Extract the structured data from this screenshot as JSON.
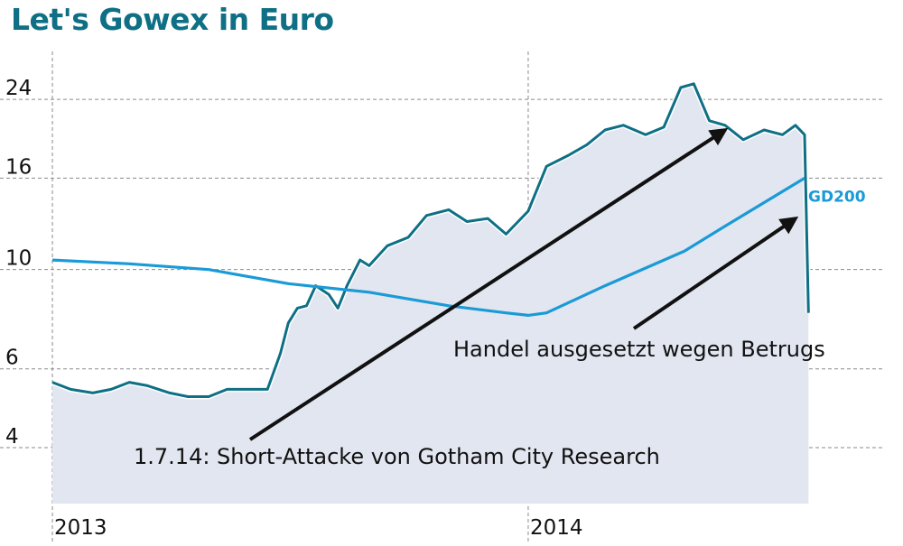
{
  "title": "Let's Gowex in Euro",
  "chart_data": {
    "type": "line",
    "title": "Let's Gowex in Euro",
    "scale": "log",
    "ylim": [
      3,
      30
    ],
    "yticks": [
      4,
      6,
      10,
      16,
      24
    ],
    "xlim": [
      "2013-01-01",
      "2014-08-01"
    ],
    "xticks": [
      {
        "date": "2013-01-01",
        "label": "2013"
      },
      {
        "date": "2014-01-01",
        "label": "2014"
      }
    ],
    "grid": true,
    "series": [
      {
        "name": "",
        "color": "#0e6f85",
        "fill": "#e2e6f0",
        "points": [
          [
            "2013-01-01",
            5.6
          ],
          [
            "2013-01-15",
            5.4
          ],
          [
            "2013-02-01",
            5.3
          ],
          [
            "2013-02-15",
            5.4
          ],
          [
            "2013-03-01",
            5.6
          ],
          [
            "2013-03-15",
            5.5
          ],
          [
            "2013-04-01",
            5.3
          ],
          [
            "2013-04-15",
            5.2
          ],
          [
            "2013-05-01",
            5.2
          ],
          [
            "2013-05-15",
            5.4
          ],
          [
            "2013-06-01",
            5.4
          ],
          [
            "2013-06-15",
            5.4
          ],
          [
            "2013-06-25",
            6.5
          ],
          [
            "2013-07-01",
            7.6
          ],
          [
            "2013-07-08",
            8.2
          ],
          [
            "2013-07-15",
            8.3
          ],
          [
            "2013-07-22",
            9.2
          ],
          [
            "2013-08-01",
            8.8
          ],
          [
            "2013-08-08",
            8.2
          ],
          [
            "2013-08-15",
            9.2
          ],
          [
            "2013-08-25",
            10.5
          ],
          [
            "2013-09-01",
            10.2
          ],
          [
            "2013-09-15",
            11.3
          ],
          [
            "2013-10-01",
            11.8
          ],
          [
            "2013-10-15",
            13.2
          ],
          [
            "2013-11-01",
            13.6
          ],
          [
            "2013-11-15",
            12.8
          ],
          [
            "2013-12-01",
            13.0
          ],
          [
            "2013-12-15",
            12.0
          ],
          [
            "2014-01-01",
            13.5
          ],
          [
            "2014-01-15",
            17.0
          ],
          [
            "2014-02-01",
            18.0
          ],
          [
            "2014-02-15",
            19.0
          ],
          [
            "2014-03-01",
            20.5
          ],
          [
            "2014-03-15",
            21.0
          ],
          [
            "2014-04-01",
            20.0
          ],
          [
            "2014-04-15",
            20.8
          ],
          [
            "2014-04-28",
            25.5
          ],
          [
            "2014-05-08",
            26.0
          ],
          [
            "2014-05-20",
            21.5
          ],
          [
            "2014-06-01",
            21.0
          ],
          [
            "2014-06-15",
            19.5
          ],
          [
            "2014-07-01",
            20.5
          ],
          [
            "2014-07-15",
            20.0
          ],
          [
            "2014-07-25",
            21.0
          ],
          [
            "2014-08-01",
            20.0
          ],
          [
            "2014-08-04",
            8.0
          ]
        ]
      },
      {
        "name": "GD200",
        "color": "#1a9ad6",
        "points": [
          [
            "2013-01-01",
            10.5
          ],
          [
            "2013-03-01",
            10.3
          ],
          [
            "2013-05-01",
            10.0
          ],
          [
            "2013-07-01",
            9.3
          ],
          [
            "2013-09-01",
            8.9
          ],
          [
            "2013-11-01",
            8.3
          ],
          [
            "2013-12-15",
            8.0
          ],
          [
            "2014-01-01",
            7.9
          ],
          [
            "2014-01-15",
            8.0
          ],
          [
            "2014-03-01",
            9.2
          ],
          [
            "2014-05-01",
            11.0
          ],
          [
            "2014-06-01",
            12.5
          ],
          [
            "2014-08-01",
            16.0
          ]
        ]
      }
    ],
    "annotations": [
      {
        "text": "1.7.14: Short-Attacke von Gotham City Research",
        "arrow_to": [
          "2014-06-01",
          20.5
        ]
      },
      {
        "text": "Handel ausgesetzt wegen Betrugs",
        "arrow_to": [
          "2014-07-25",
          13.0
        ]
      }
    ]
  }
}
